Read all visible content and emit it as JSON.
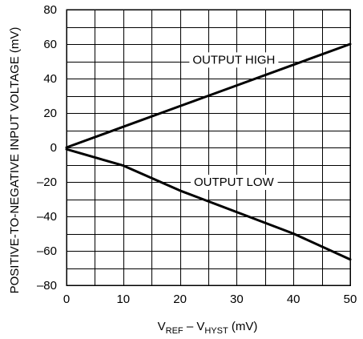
{
  "chart_data": {
    "type": "line",
    "xlabel": {
      "base1": "V",
      "sub1": "REF",
      "mid": " – V",
      "sub2": "HYST",
      "unit": " (mV)"
    },
    "ylabel": "POSITIVE-TO-NEGATIVE INPUT VOLTAGE (mV)",
    "xlim": [
      0,
      50
    ],
    "ylim": [
      -80,
      80
    ],
    "x_ticks": [
      0,
      10,
      20,
      30,
      40,
      50
    ],
    "y_ticks": [
      -80,
      -60,
      -40,
      -20,
      0,
      20,
      40,
      60,
      80
    ],
    "x_tick_labels": [
      "0",
      "10",
      "20",
      "30",
      "40",
      "50"
    ],
    "y_tick_labels": [
      "–80",
      "–60",
      "–40",
      "–20",
      "0",
      "20",
      "40",
      "60",
      "80"
    ],
    "x_grid": [
      0,
      5,
      10,
      15,
      20,
      25,
      30,
      35,
      40,
      45,
      50
    ],
    "y_grid": [
      -80,
      -70,
      -60,
      -50,
      -40,
      -30,
      -20,
      -10,
      0,
      10,
      20,
      30,
      40,
      50,
      60,
      70,
      80
    ],
    "grid": true,
    "series": [
      {
        "name": "OUTPUT HIGH",
        "x": [
          0,
          10,
          20,
          30,
          40,
          50
        ],
        "y": [
          0,
          12,
          24,
          36,
          48,
          60
        ]
      },
      {
        "name": "OUTPUT LOW",
        "x": [
          0,
          10,
          20,
          30,
          40,
          50
        ],
        "y": [
          -1,
          -10.5,
          -25,
          -37.5,
          -50,
          -65
        ]
      }
    ],
    "annotations": [
      {
        "text": "OUTPUT HIGH",
        "x": 29.5,
        "y": 51
      },
      {
        "text": "OUTPUT LOW",
        "x": 29.5,
        "y": -20
      }
    ]
  }
}
